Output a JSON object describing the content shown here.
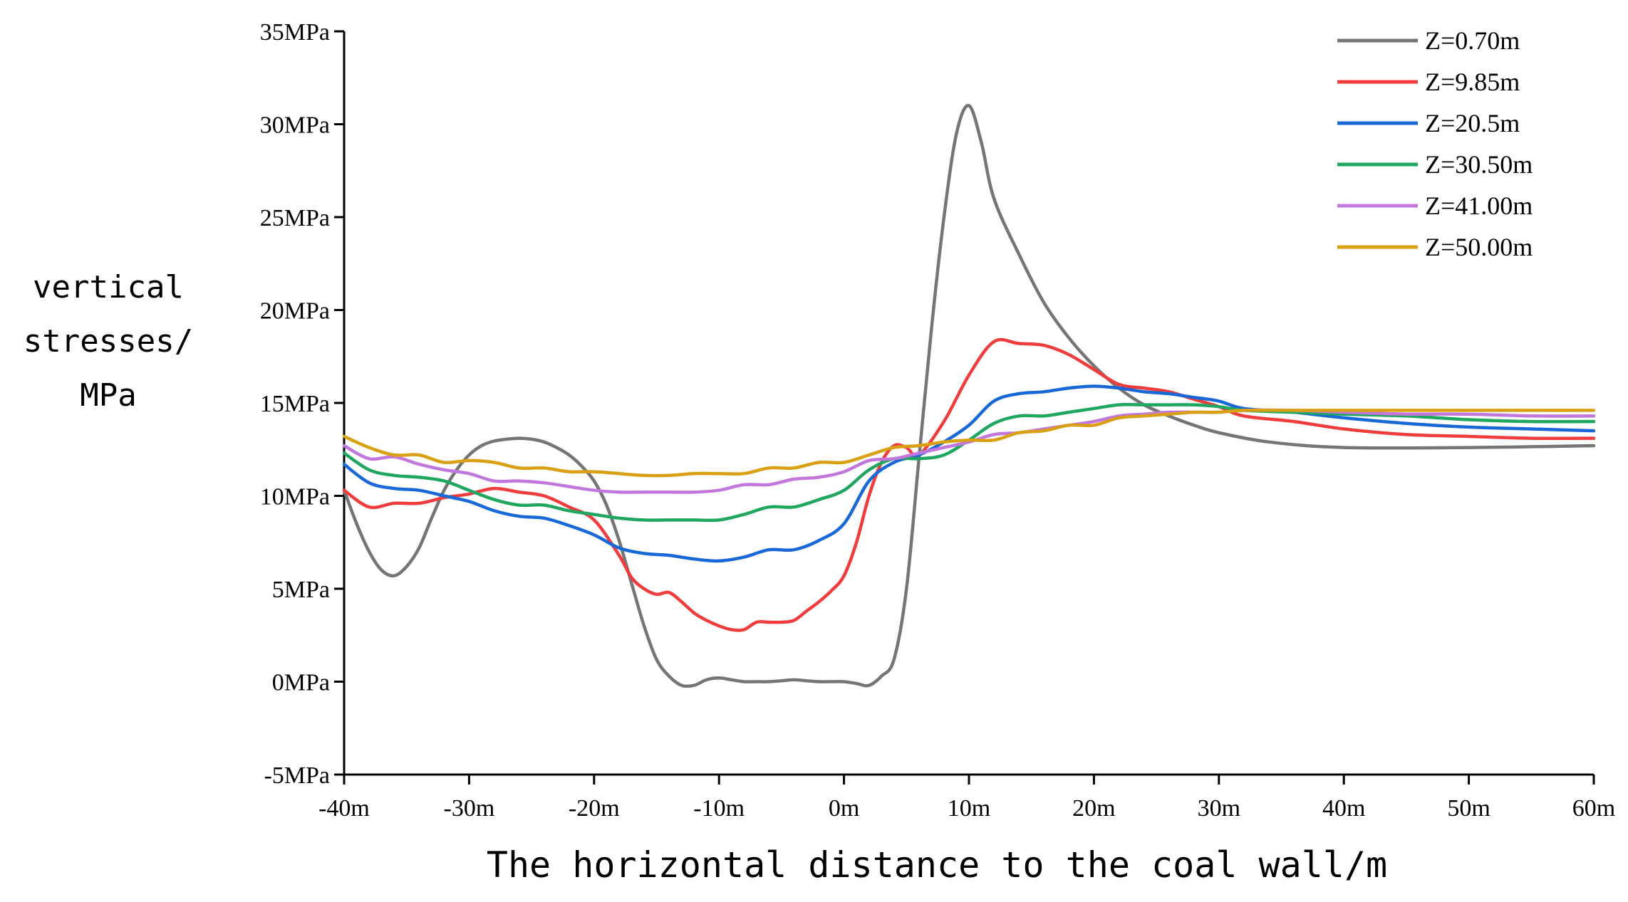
{
  "chart_data": {
    "type": "line",
    "title": "",
    "xlabel": "The horizontal distance to the coal wall/m",
    "ylabel_lines": [
      "vertical",
      "stresses/",
      "MPa"
    ],
    "xlim": [
      -40,
      60
    ],
    "ylim": [
      -5,
      35
    ],
    "x_ticks": [
      -40,
      -30,
      -20,
      -10,
      0,
      10,
      20,
      30,
      40,
      50,
      60
    ],
    "x_tick_labels": [
      "-40m",
      "-30m",
      "-20m",
      "-10m",
      "0m",
      "10m",
      "20m",
      "30m",
      "40m",
      "50m",
      "60m"
    ],
    "y_ticks": [
      -5,
      0,
      5,
      10,
      15,
      20,
      25,
      30,
      35
    ],
    "y_tick_labels": [
      "-5MPa",
      "0MPa",
      "5MPa",
      "10MPa",
      "15MPa",
      "20MPa",
      "25MPa",
      "30MPa",
      "35MPa"
    ],
    "legend_position": "top-right",
    "series": [
      {
        "name": "Z=0.70m",
        "color": "#757575",
        "x": [
          -40,
          -39,
          -38,
          -37,
          -36,
          -35,
          -34,
          -33,
          -32,
          -31,
          -30,
          -29,
          -28,
          -27,
          -26,
          -25,
          -24,
          -23,
          -22,
          -21,
          -20,
          -19,
          -18,
          -17,
          -16,
          -15,
          -14,
          -13,
          -12,
          -11,
          -10,
          -9,
          -8,
          -7,
          -6,
          -5,
          -4,
          -3,
          -2,
          -1,
          0,
          1,
          2,
          3,
          4,
          5,
          6,
          7,
          8,
          9,
          10,
          11,
          12,
          14,
          16,
          18,
          20,
          22,
          24,
          26,
          28,
          30,
          34,
          40,
          50,
          60
        ],
        "y": [
          10.3,
          8.5,
          7.0,
          6.0,
          5.7,
          6.2,
          7.2,
          8.8,
          10.3,
          11.4,
          12.2,
          12.7,
          12.95,
          13.05,
          13.1,
          13.05,
          12.9,
          12.6,
          12.2,
          11.6,
          10.8,
          9.5,
          7.6,
          5.3,
          3.0,
          1.2,
          0.3,
          -0.2,
          -0.2,
          0.1,
          0.2,
          0.1,
          0.0,
          0.0,
          0.0,
          0.05,
          0.1,
          0.05,
          0.0,
          0.0,
          0.0,
          -0.1,
          -0.2,
          0.3,
          1.2,
          5.0,
          12.0,
          19.0,
          25.0,
          29.5,
          31.0,
          29.0,
          26.0,
          23.0,
          20.4,
          18.5,
          17.0,
          15.8,
          14.9,
          14.3,
          13.8,
          13.4,
          12.9,
          12.6,
          12.6,
          12.7
        ]
      },
      {
        "name": "Z=9.85m",
        "color": "#f03c3c",
        "x": [
          -40,
          -38,
          -36,
          -34,
          -32,
          -30,
          -28,
          -26,
          -24,
          -22,
          -20,
          -18,
          -17,
          -16,
          -15,
          -14,
          -13,
          -12,
          -11,
          -10,
          -9,
          -8,
          -7,
          -6,
          -5,
          -4,
          -3,
          -2,
          -1,
          0,
          1,
          2,
          3,
          4,
          5,
          6,
          8,
          10,
          12,
          14,
          16,
          18,
          20,
          22,
          24,
          26,
          28,
          30,
          32,
          36,
          40,
          45,
          50,
          55,
          60
        ],
        "y": [
          10.3,
          9.4,
          9.6,
          9.6,
          9.9,
          10.1,
          10.4,
          10.2,
          10.0,
          9.4,
          8.7,
          6.8,
          5.6,
          5.0,
          4.7,
          4.8,
          4.3,
          3.7,
          3.3,
          3.0,
          2.8,
          2.8,
          3.2,
          3.2,
          3.2,
          3.3,
          3.8,
          4.3,
          4.9,
          5.7,
          7.5,
          10.0,
          11.8,
          12.7,
          12.6,
          12.2,
          14.0,
          16.5,
          18.3,
          18.2,
          18.1,
          17.6,
          16.8,
          16.0,
          15.8,
          15.6,
          15.2,
          14.8,
          14.3,
          14.0,
          13.6,
          13.3,
          13.2,
          13.1,
          13.1
        ]
      },
      {
        "name": "Z=20.5m",
        "color": "#1868d8",
        "x": [
          -40,
          -38,
          -36,
          -34,
          -32,
          -30,
          -28,
          -26,
          -24,
          -22,
          -20,
          -18,
          -16,
          -14,
          -12,
          -10,
          -8,
          -6,
          -4,
          -2,
          0,
          2,
          4,
          6,
          8,
          10,
          12,
          14,
          16,
          18,
          20,
          22,
          24,
          26,
          28,
          30,
          32,
          36,
          40,
          45,
          50,
          55,
          60
        ],
        "y": [
          11.7,
          10.7,
          10.4,
          10.3,
          10.0,
          9.7,
          9.2,
          8.9,
          8.8,
          8.4,
          7.9,
          7.2,
          6.9,
          6.8,
          6.6,
          6.5,
          6.7,
          7.1,
          7.1,
          7.6,
          8.5,
          10.8,
          11.8,
          12.2,
          12.9,
          13.8,
          15.1,
          15.5,
          15.6,
          15.8,
          15.9,
          15.8,
          15.6,
          15.5,
          15.3,
          15.1,
          14.7,
          14.5,
          14.2,
          13.9,
          13.7,
          13.6,
          13.5
        ]
      },
      {
        "name": "Z=30.50m",
        "color": "#1fa760",
        "x": [
          -40,
          -38,
          -36,
          -34,
          -32,
          -30,
          -28,
          -26,
          -24,
          -22,
          -20,
          -18,
          -16,
          -14,
          -12,
          -10,
          -8,
          -6,
          -4,
          -2,
          0,
          2,
          4,
          6,
          8,
          10,
          12,
          14,
          16,
          18,
          20,
          22,
          24,
          26,
          28,
          30,
          32,
          36,
          40,
          45,
          50,
          55,
          60
        ],
        "y": [
          12.3,
          11.4,
          11.1,
          11.0,
          10.8,
          10.3,
          9.8,
          9.5,
          9.5,
          9.2,
          9.0,
          8.8,
          8.7,
          8.7,
          8.7,
          8.7,
          9.0,
          9.4,
          9.4,
          9.8,
          10.3,
          11.4,
          12.0,
          12.0,
          12.2,
          13.0,
          13.9,
          14.3,
          14.3,
          14.5,
          14.7,
          14.9,
          14.9,
          14.9,
          14.9,
          14.8,
          14.6,
          14.5,
          14.4,
          14.3,
          14.1,
          14.0,
          14.0
        ]
      },
      {
        "name": "Z=41.00m",
        "color": "#c277dd",
        "x": [
          -40,
          -38,
          -36,
          -34,
          -32,
          -30,
          -28,
          -26,
          -24,
          -22,
          -20,
          -18,
          -16,
          -14,
          -12,
          -10,
          -8,
          -6,
          -4,
          -2,
          0,
          2,
          4,
          6,
          8,
          10,
          12,
          14,
          16,
          18,
          20,
          22,
          24,
          26,
          28,
          30,
          32,
          36,
          40,
          45,
          50,
          55,
          60
        ],
        "y": [
          12.7,
          12.0,
          12.1,
          11.7,
          11.4,
          11.2,
          10.8,
          10.8,
          10.7,
          10.5,
          10.3,
          10.2,
          10.2,
          10.2,
          10.2,
          10.3,
          10.6,
          10.6,
          10.9,
          11.0,
          11.3,
          11.9,
          12.0,
          12.3,
          12.6,
          12.9,
          13.3,
          13.4,
          13.6,
          13.8,
          14.0,
          14.3,
          14.4,
          14.5,
          14.5,
          14.5,
          14.6,
          14.6,
          14.5,
          14.4,
          14.4,
          14.3,
          14.3
        ]
      },
      {
        "name": "Z=50.00m",
        "color": "#d9a013",
        "x": [
          -40,
          -38,
          -36,
          -34,
          -32,
          -30,
          -28,
          -26,
          -24,
          -22,
          -20,
          -18,
          -16,
          -14,
          -12,
          -10,
          -8,
          -6,
          -4,
          -2,
          0,
          2,
          4,
          6,
          8,
          10,
          12,
          14,
          16,
          18,
          20,
          22,
          24,
          26,
          28,
          30,
          32,
          36,
          40,
          45,
          50,
          55,
          60
        ],
        "y": [
          13.2,
          12.6,
          12.2,
          12.2,
          11.8,
          11.9,
          11.8,
          11.5,
          11.5,
          11.3,
          11.3,
          11.2,
          11.1,
          11.1,
          11.2,
          11.2,
          11.2,
          11.5,
          11.5,
          11.8,
          11.8,
          12.2,
          12.6,
          12.7,
          12.9,
          13.0,
          13.0,
          13.4,
          13.5,
          13.8,
          13.8,
          14.2,
          14.3,
          14.4,
          14.5,
          14.5,
          14.6,
          14.6,
          14.6,
          14.6,
          14.6,
          14.6,
          14.6
        ]
      }
    ]
  }
}
